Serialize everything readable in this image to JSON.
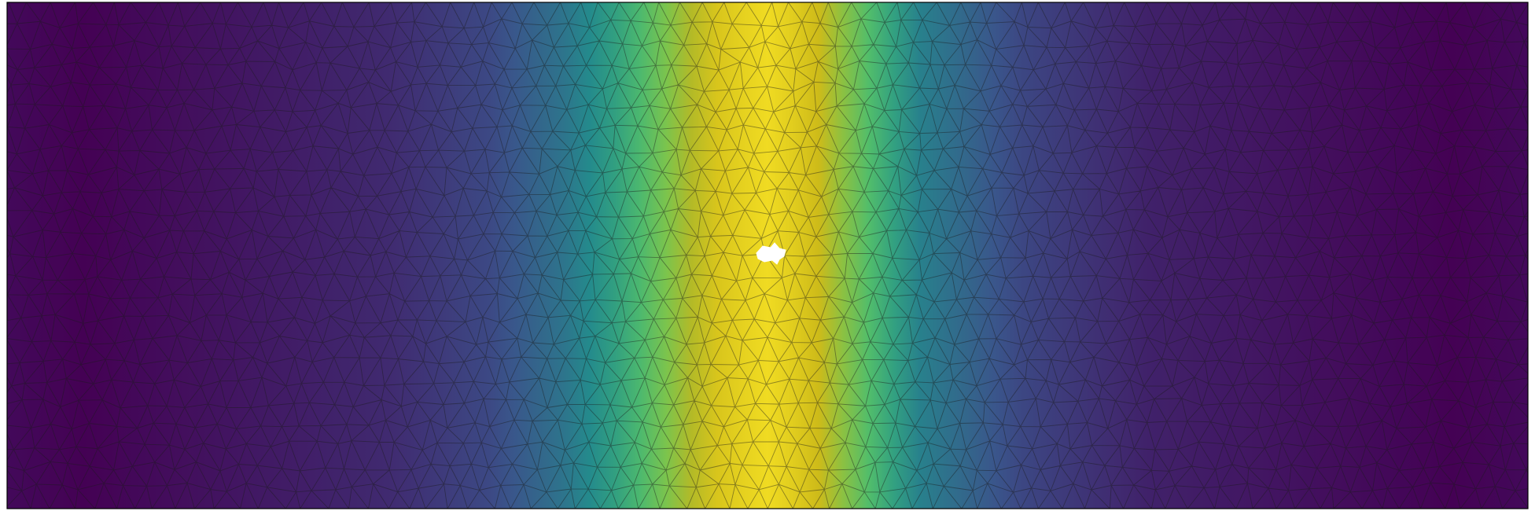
{
  "figure": {
    "colormap": "viridis",
    "palette": [
      "#440154",
      "#3b528b",
      "#21918c",
      "#5ec962",
      "#c8b618",
      "#fde725"
    ],
    "background": "#ffffff",
    "mesh_edge_color": "#1a1a1a",
    "frame_color": "#000000",
    "hole_color": "#ffffff"
  },
  "chart_data": {
    "type": "heatmap",
    "title": "",
    "xlabel": "",
    "ylabel": "",
    "mesh": "triangular",
    "field_profile": {
      "description_axis": "x",
      "x": [
        0.0,
        0.05,
        0.15,
        0.25,
        0.32,
        0.37,
        0.41,
        0.44,
        0.47,
        0.5,
        0.53,
        0.56,
        0.6,
        0.66,
        0.75,
        0.85,
        0.95,
        1.0
      ],
      "value": [
        0.02,
        0.0,
        0.05,
        0.1,
        0.18,
        0.32,
        0.5,
        0.7,
        0.88,
        0.95,
        0.85,
        0.6,
        0.35,
        0.18,
        0.08,
        0.04,
        0.0,
        0.02
      ]
    },
    "grid": false,
    "legend": "none"
  }
}
